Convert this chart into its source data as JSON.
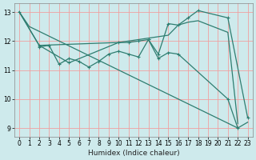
{
  "title": "",
  "xlabel": "Humidex (Indice chaleur)",
  "background_color": "#ceeaec",
  "grid_color": "#f0a0a0",
  "line_color": "#2e7d70",
  "xlim": [
    -0.5,
    23.5
  ],
  "ylim": [
    8.7,
    13.3
  ],
  "xticks": [
    0,
    1,
    2,
    3,
    4,
    5,
    6,
    7,
    8,
    9,
    10,
    11,
    12,
    13,
    14,
    15,
    16,
    17,
    18,
    19,
    20,
    21,
    22,
    23
  ],
  "yticks": [
    9,
    10,
    11,
    12,
    13
  ],
  "line1_no_marker": {
    "x": [
      0,
      1,
      22,
      23
    ],
    "y": [
      13.0,
      12.5,
      9.0,
      9.2
    ]
  },
  "line2_no_marker": {
    "x": [
      0,
      2,
      10,
      11,
      12,
      13,
      14,
      15,
      16,
      17,
      18,
      21,
      22
    ],
    "y": [
      13.0,
      11.85,
      11.95,
      12.0,
      12.05,
      12.1,
      12.15,
      12.2,
      12.55,
      12.65,
      12.7,
      12.3,
      9.15
    ]
  },
  "line3_marker": {
    "x": [
      2,
      3,
      4,
      5,
      6,
      7,
      8,
      9,
      10,
      11,
      12,
      13,
      14,
      15,
      16,
      21,
      22
    ],
    "y": [
      11.8,
      11.85,
      11.2,
      11.4,
      11.3,
      11.1,
      11.3,
      11.55,
      11.65,
      11.55,
      11.45,
      12.05,
      11.4,
      11.6,
      11.55,
      10.0,
      9.0
    ]
  },
  "line4_marker": {
    "x": [
      0,
      2,
      5,
      10,
      11,
      12,
      13,
      14,
      15,
      16,
      17,
      18,
      21,
      23
    ],
    "y": [
      13.0,
      11.85,
      11.25,
      11.95,
      11.95,
      12.0,
      12.05,
      11.55,
      12.6,
      12.55,
      12.8,
      13.05,
      12.8,
      9.35
    ]
  }
}
